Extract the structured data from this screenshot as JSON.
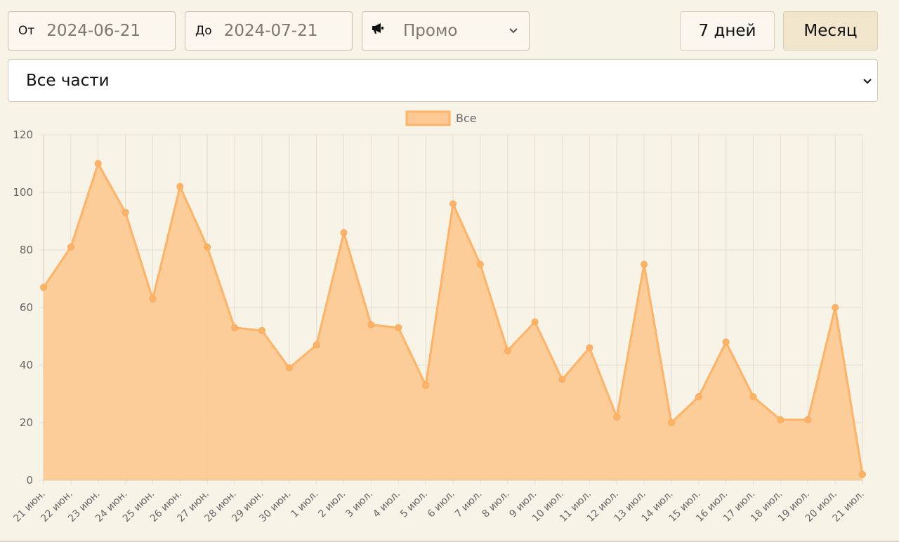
{
  "filters": {
    "from_label": "От",
    "from_value": "2024-06-21",
    "to_label": "До",
    "to_value": "2024-07-21",
    "promo_icon": "megaphone-icon",
    "promo_value": "Промо",
    "part_value": "Все части"
  },
  "buttons": {
    "week": "7 дней",
    "month": "Месяц"
  },
  "chart_data": {
    "type": "area",
    "legend_position": "top",
    "grid": true,
    "ylim": [
      0,
      120
    ],
    "yticks": [
      0,
      20,
      40,
      60,
      80,
      100,
      120
    ],
    "categories": [
      "21 июн.",
      "22 июн.",
      "23 июн.",
      "24 июн.",
      "25 июн.",
      "26 июн.",
      "27 июн.",
      "28 июн.",
      "29 июн.",
      "30 июн.",
      "1 июл.",
      "2 июл.",
      "3 июл.",
      "4 июл.",
      "5 июл.",
      "6 июл.",
      "7 июл.",
      "8 июл.",
      "9 июл.",
      "10 июл.",
      "11 июл.",
      "12 июл.",
      "13 июл.",
      "14 июл.",
      "15 июл.",
      "16 июл.",
      "17 июл.",
      "18 июл.",
      "19 июл.",
      "20 июл.",
      "21 июл."
    ],
    "series": [
      {
        "name": "Все",
        "color": "#ffb366",
        "fill": "#fcc995",
        "values": [
          67,
          81,
          110,
          93,
          63,
          102,
          81,
          53,
          52,
          39,
          47,
          86,
          54,
          53,
          33,
          96,
          75,
          45,
          55,
          35,
          46,
          22,
          75,
          20,
          29,
          48,
          29,
          21,
          21,
          60,
          2
        ]
      }
    ]
  }
}
